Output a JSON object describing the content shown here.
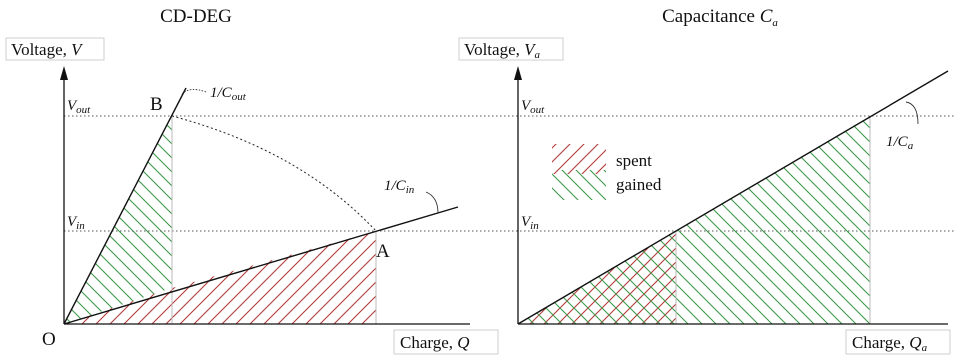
{
  "colors": {
    "spent": "#b23a3a",
    "gained": "#3e9a4a",
    "line": "#111111",
    "guide": "#555555"
  },
  "left_panel": {
    "title": "CD-DEG",
    "y_axis": {
      "label": "Voltage, ",
      "var": "V"
    },
    "x_axis": {
      "label": "Charge, ",
      "var": "Q"
    },
    "origin": "O",
    "point_b": "B",
    "point_a": "A",
    "v_out": {
      "var": "V",
      "sub": "out"
    },
    "v_in": {
      "var": "V",
      "sub": "in"
    },
    "slope_out": {
      "prefix": "1/",
      "var": "C",
      "sub": "out"
    },
    "slope_in": {
      "prefix": "1/",
      "var": "C",
      "sub": "in"
    }
  },
  "right_panel": {
    "title_text": "Capacitance ",
    "title_var": "C",
    "title_sub": "a",
    "y_axis": {
      "label": "Voltage, ",
      "var": "V",
      "sub": "a"
    },
    "x_axis": {
      "label": "Charge, ",
      "var": "Q",
      "sub": "a"
    },
    "v_out": {
      "var": "V",
      "sub": "out"
    },
    "v_in": {
      "var": "V",
      "sub": "in"
    },
    "slope": {
      "prefix": "1/",
      "var": "C",
      "sub": "a"
    },
    "legend": [
      {
        "key": "spent",
        "label": "spent"
      },
      {
        "key": "gained",
        "label": "gained"
      }
    ]
  }
}
